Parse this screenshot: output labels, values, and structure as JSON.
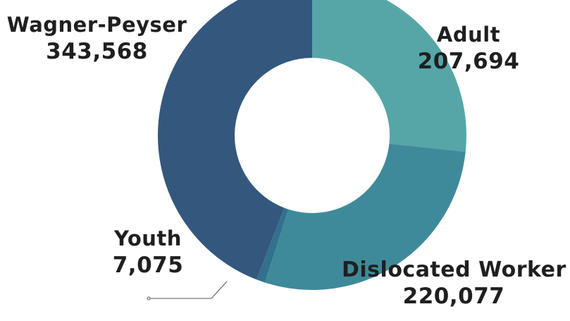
{
  "chart_data": {
    "type": "pie",
    "variant": "donut",
    "title": "",
    "slices": [
      {
        "label": "Adult",
        "value": 207694,
        "value_label": "207,694",
        "color": "#56a6a8"
      },
      {
        "label": "Dislocated Worker",
        "value": 220077,
        "value_label": "220,077",
        "color": "#3f8a9a"
      },
      {
        "label": "Youth",
        "value": 7075,
        "value_label": "7,075",
        "color": "#33708d"
      },
      {
        "label": "Wagner-Peyser",
        "value": 343568,
        "value_label": "343,568",
        "color": "#34577d"
      }
    ],
    "legend": "none",
    "background": "#ffffff",
    "leader_line_color": "#555555"
  }
}
